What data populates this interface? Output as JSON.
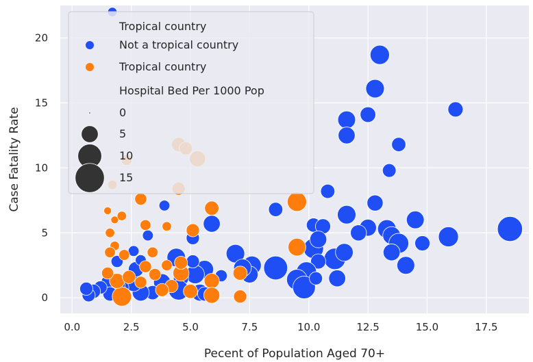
{
  "chart_data": {
    "type": "scatter",
    "xlabel": "Pecent of Population Aged 70+",
    "ylabel": "Case Fatality Rate",
    "xlim": [
      -0.5,
      19.3
    ],
    "ylim": [
      -1.2,
      22.5
    ],
    "xticks": [
      "0.0",
      "2.5",
      "5.0",
      "7.5",
      "10.0",
      "12.5",
      "15.0",
      "17.5"
    ],
    "xtick_values": [
      0,
      2.5,
      5,
      7.5,
      10,
      12.5,
      15,
      17.5
    ],
    "yticks": [
      "0",
      "5",
      "10",
      "15",
      "20"
    ],
    "ytick_values": [
      0,
      5,
      10,
      15,
      20
    ],
    "grid": true,
    "legend": {
      "placement": "upper-left",
      "hue_title": "Tropical country",
      "size_title": "Hospital Bed Per 1000 Pop",
      "hue_entries": [
        "Not a tropical country",
        "Tropical country"
      ],
      "size_entries": [
        "0",
        "5",
        "10",
        "15"
      ],
      "size_values": [
        0,
        5,
        10,
        15
      ]
    },
    "colors": {
      "not_tropical": "#1f4ef5",
      "tropical": "#ff7d0d",
      "legend_size_marker": "#333333",
      "background": "#eaeaf2"
    },
    "series": [
      {
        "name": "Not a tropical country",
        "points": [
          [
            13.0,
            18.7,
            6.5
          ],
          [
            12.8,
            16.1,
            6.0
          ],
          [
            11.6,
            13.7,
            5.5
          ],
          [
            12.5,
            14.1,
            4.2
          ],
          [
            11.6,
            12.5,
            5.0
          ],
          [
            16.2,
            14.5,
            4.0
          ],
          [
            13.8,
            11.8,
            3.5
          ],
          [
            13.4,
            9.8,
            3.2
          ],
          [
            10.8,
            8.2,
            3.5
          ],
          [
            8.6,
            6.8,
            3.5
          ],
          [
            12.8,
            7.3,
            4.5
          ],
          [
            11.6,
            6.4,
            6.0
          ],
          [
            10.2,
            5.6,
            3.5
          ],
          [
            10.6,
            5.5,
            4.0
          ],
          [
            12.5,
            5.4,
            5.0
          ],
          [
            13.3,
            5.3,
            6.0
          ],
          [
            13.5,
            4.8,
            5.5
          ],
          [
            14.5,
            6.0,
            5.5
          ],
          [
            14.8,
            4.2,
            4.0
          ],
          [
            15.9,
            4.7,
            7.0
          ],
          [
            18.5,
            5.3,
            11.0
          ],
          [
            14.1,
            2.5,
            5.5
          ],
          [
            13.8,
            4.2,
            7.0
          ],
          [
            13.5,
            3.5,
            5.0
          ],
          [
            12.1,
            5.0,
            4.5
          ],
          [
            11.1,
            3.0,
            8.0
          ],
          [
            11.5,
            3.5,
            5.5
          ],
          [
            11.2,
            1.5,
            5.0
          ],
          [
            10.2,
            3.8,
            7.0
          ],
          [
            10.4,
            4.5,
            5.0
          ],
          [
            10.4,
            2.8,
            4.0
          ],
          [
            9.9,
            2.0,
            7.0
          ],
          [
            9.5,
            1.4,
            7.5
          ],
          [
            9.8,
            0.8,
            9.0
          ],
          [
            10.3,
            1.5,
            3.0
          ],
          [
            8.6,
            2.3,
            10.0
          ],
          [
            7.6,
            2.5,
            6.0
          ],
          [
            7.5,
            1.8,
            5.0
          ],
          [
            6.9,
            3.4,
            6.0
          ],
          [
            7.2,
            2.3,
            5.5
          ],
          [
            5.9,
            5.7,
            5.0
          ],
          [
            5.6,
            2.2,
            5.5
          ],
          [
            5.2,
            1.8,
            6.0
          ],
          [
            4.4,
            3.1,
            6.0
          ],
          [
            5.1,
            4.6,
            3.0
          ],
          [
            5.1,
            2.8,
            3.0
          ],
          [
            4.6,
            1.5,
            4.0
          ],
          [
            5.4,
            0.4,
            5.0
          ],
          [
            4.5,
            0.6,
            7.0
          ],
          [
            3.8,
            1.2,
            5.0
          ],
          [
            3.4,
            0.4,
            3.5
          ],
          [
            2.9,
            0.4,
            5.0
          ],
          [
            2.6,
            1.1,
            4.5
          ],
          [
            2.7,
            2.2,
            4.0
          ],
          [
            2.1,
            0.8,
            3.5
          ],
          [
            1.9,
            0.9,
            4.5
          ],
          [
            1.5,
            1.2,
            3.0
          ],
          [
            1.6,
            0.3,
            3.5
          ],
          [
            1.2,
            0.8,
            3.0
          ],
          [
            0.9,
            0.5,
            3.5
          ],
          [
            0.7,
            0.2,
            3.0
          ],
          [
            0.6,
            0.7,
            3.0
          ],
          [
            1.9,
            2.8,
            2.5
          ],
          [
            2.6,
            3.6,
            2.0
          ],
          [
            3.2,
            4.8,
            2.0
          ],
          [
            3.9,
            7.1,
            2.0
          ],
          [
            2.9,
            2.9,
            2.0
          ],
          [
            1.7,
            22.0,
            1.5
          ],
          [
            5.6,
            0.3,
            3.5
          ],
          [
            6.3,
            1.7,
            2.5
          ]
        ]
      },
      {
        "name": "Tropical country",
        "points": [
          [
            9.5,
            7.4,
            6.5
          ],
          [
            9.5,
            3.9,
            5.5
          ],
          [
            5.9,
            6.9,
            3.5
          ],
          [
            5.1,
            5.2,
            3.0
          ],
          [
            4.5,
            11.8,
            3.5
          ],
          [
            4.8,
            11.5,
            3.0
          ],
          [
            5.3,
            10.7,
            4.5
          ],
          [
            4.5,
            8.4,
            3.0
          ],
          [
            2.3,
            10.6,
            2.0
          ],
          [
            1.7,
            8.7,
            1.5
          ],
          [
            2.9,
            7.6,
            2.5
          ],
          [
            3.1,
            5.6,
            2.0
          ],
          [
            4.0,
            5.5,
            1.5
          ],
          [
            1.8,
            6.0,
            1.0
          ],
          [
            1.6,
            5.0,
            1.5
          ],
          [
            2.1,
            6.3,
            1.5
          ],
          [
            1.8,
            4.0,
            1.5
          ],
          [
            1.6,
            3.5,
            2.0
          ],
          [
            2.2,
            3.3,
            2.0
          ],
          [
            3.4,
            3.5,
            2.0
          ],
          [
            4.0,
            2.5,
            2.0
          ],
          [
            4.6,
            1.9,
            4.5
          ],
          [
            4.6,
            2.7,
            3.0
          ],
          [
            4.2,
            0.9,
            3.0
          ],
          [
            5.9,
            1.3,
            4.0
          ],
          [
            5.9,
            0.2,
            4.5
          ],
          [
            5.0,
            0.5,
            3.5
          ],
          [
            3.8,
            0.6,
            3.0
          ],
          [
            2.1,
            0.1,
            6.5
          ],
          [
            1.9,
            1.3,
            4.0
          ],
          [
            2.4,
            1.6,
            3.0
          ],
          [
            3.1,
            2.4,
            2.5
          ],
          [
            7.1,
            1.9,
            3.5
          ],
          [
            7.1,
            0.1,
            3.0
          ],
          [
            1.5,
            1.9,
            2.5
          ],
          [
            2.9,
            1.2,
            2.5
          ],
          [
            3.5,
            1.8,
            2.5
          ],
          [
            1.5,
            6.7,
            1.0
          ]
        ]
      }
    ]
  }
}
